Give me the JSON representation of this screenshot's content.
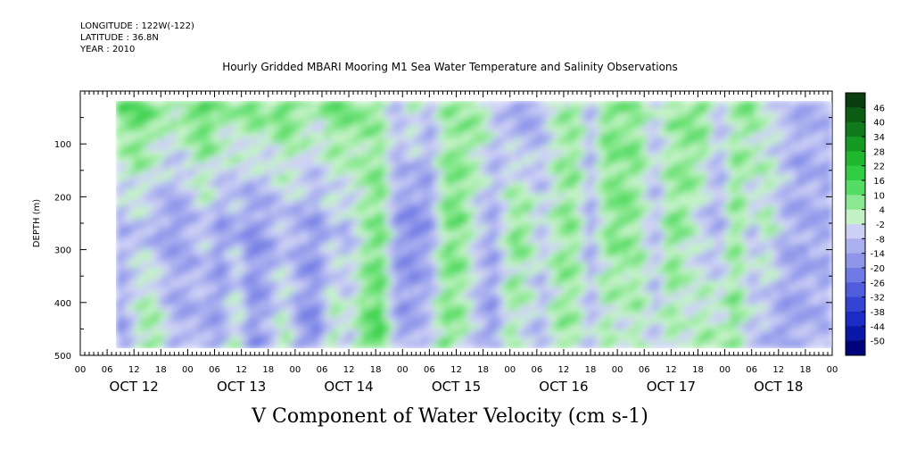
{
  "header": {
    "longitude": "LONGITUDE : 122W(-122)",
    "latitude": "LATITUDE : 36.8N",
    "year": "YEAR : 2010"
  },
  "chart_data": {
    "type": "heatmap",
    "title": "Hourly Gridded MBARI Mooring M1 Sea Water Temperature and Salinity Observations",
    "bottom_title": "V Component of Water Velocity (cm s-1)",
    "ylabel": "DEPTH (m)",
    "xlabel": "",
    "y_range": [
      0,
      500
    ],
    "y_inverted": true,
    "y_ticks": [
      "100",
      "200",
      "300",
      "400",
      "500"
    ],
    "y_data_extent": [
      20,
      490
    ],
    "x_hour_labels": [
      "00",
      "06",
      "12",
      "18",
      "00",
      "06",
      "12",
      "18",
      "00",
      "06",
      "12",
      "18",
      "00",
      "06",
      "12",
      "18",
      "00",
      "06",
      "12",
      "18",
      "00",
      "06",
      "12",
      "18",
      "00",
      "06",
      "12",
      "18",
      "00"
    ],
    "x_day_labels": [
      "OCT 12",
      "OCT 13",
      "OCT 14",
      "OCT 15",
      "OCT 16",
      "OCT 17",
      "OCT 18"
    ],
    "colorbar": {
      "labels": [
        "46",
        "40",
        "34",
        "28",
        "22",
        "16",
        "10",
        "4",
        "-2",
        "-8",
        "-14",
        "-20",
        "-26",
        "-32",
        "-38",
        "-44",
        "-50"
      ],
      "colors": [
        "#0a3d0f",
        "#0d5c14",
        "#117a1c",
        "#169a24",
        "#1eb72e",
        "#30cc42",
        "#55dc65",
        "#8ae890",
        "#c2f2c6",
        "#cdd0f5",
        "#aab0ef",
        "#8e96ea",
        "#6f7ae4",
        "#4f5cdc",
        "#3344d2",
        "#1a2cc4",
        "#0a18a8",
        "#00047a"
      ]
    },
    "column_pattern_note_free": true,
    "columns": [
      {
        "t": 0.0,
        "top": 8,
        "mid": -8,
        "bot": -6
      },
      {
        "t": 0.1,
        "top": 8,
        "mid": -12,
        "bot": -8
      },
      {
        "t": 0.25,
        "top": 8,
        "mid": -20,
        "bot": -16
      },
      {
        "t": 0.4,
        "top": 12,
        "mid": -10,
        "bot": -14
      },
      {
        "t": 0.55,
        "top": 16,
        "mid": -6,
        "bot": 4
      },
      {
        "t": 0.7,
        "top": 8,
        "mid": -12,
        "bot": 10
      },
      {
        "t": 0.85,
        "top": 4,
        "mid": -16,
        "bot": -8
      },
      {
        "t": 1.0,
        "top": 10,
        "mid": -14,
        "bot": -10
      },
      {
        "t": 1.15,
        "top": 16,
        "mid": -4,
        "bot": -12
      },
      {
        "t": 1.3,
        "top": 10,
        "mid": -16,
        "bot": -14
      },
      {
        "t": 1.45,
        "top": 4,
        "mid": -10,
        "bot": 6
      },
      {
        "t": 1.6,
        "top": 12,
        "mid": -18,
        "bot": -18
      },
      {
        "t": 1.75,
        "top": 6,
        "mid": -14,
        "bot": -10
      },
      {
        "t": 1.9,
        "top": 14,
        "mid": -8,
        "bot": 4
      },
      {
        "t": 2.05,
        "top": 8,
        "mid": -12,
        "bot": -16
      },
      {
        "t": 2.2,
        "top": 4,
        "mid": -16,
        "bot": -20
      },
      {
        "t": 2.35,
        "top": 10,
        "mid": -6,
        "bot": 6
      },
      {
        "t": 2.5,
        "top": 12,
        "mid": -10,
        "bot": -6
      },
      {
        "t": 2.65,
        "top": 6,
        "mid": 4,
        "bot": 12
      },
      {
        "t": 2.8,
        "top": 4,
        "mid": 10,
        "bot": 16
      },
      {
        "t": 2.95,
        "top": -8,
        "mid": -16,
        "bot": -14
      },
      {
        "t": 3.1,
        "top": 6,
        "mid": -20,
        "bot": -12
      },
      {
        "t": 3.25,
        "top": -10,
        "mid": -16,
        "bot": -6
      },
      {
        "t": 3.4,
        "top": 6,
        "mid": 8,
        "bot": 10
      },
      {
        "t": 3.55,
        "top": 4,
        "mid": 10,
        "bot": 4
      },
      {
        "t": 3.7,
        "top": 8,
        "mid": -6,
        "bot": -10
      },
      {
        "t": 3.85,
        "top": -4,
        "mid": -14,
        "bot": -16
      },
      {
        "t": 4.0,
        "top": -12,
        "mid": 6,
        "bot": 4
      },
      {
        "t": 4.15,
        "top": -18,
        "mid": 8,
        "bot": -6
      },
      {
        "t": 4.3,
        "top": -10,
        "mid": -6,
        "bot": -10
      },
      {
        "t": 4.45,
        "top": 4,
        "mid": 4,
        "bot": 6
      },
      {
        "t": 4.6,
        "top": 6,
        "mid": 8,
        "bot": 4
      },
      {
        "t": 4.75,
        "top": -8,
        "mid": -12,
        "bot": -8
      },
      {
        "t": 4.9,
        "top": 10,
        "mid": 6,
        "bot": 4
      },
      {
        "t": 5.05,
        "top": 6,
        "mid": 10,
        "bot": -6
      },
      {
        "t": 5.2,
        "top": 8,
        "mid": 4,
        "bot": 6
      },
      {
        "t": 5.35,
        "top": -6,
        "mid": -10,
        "bot": -8
      },
      {
        "t": 5.5,
        "top": 4,
        "mid": 8,
        "bot": 6
      },
      {
        "t": 5.65,
        "top": 8,
        "mid": 4,
        "bot": -4
      },
      {
        "t": 5.8,
        "top": 12,
        "mid": -6,
        "bot": 6
      },
      {
        "t": 5.95,
        "top": -8,
        "mid": -14,
        "bot": 4
      },
      {
        "t": 6.1,
        "top": 4,
        "mid": 10,
        "bot": 8
      },
      {
        "t": 6.25,
        "top": 10,
        "mid": -8,
        "bot": -6
      },
      {
        "t": 6.4,
        "top": -4,
        "mid": 4,
        "bot": -10
      },
      {
        "t": 6.55,
        "top": -6,
        "mid": -10,
        "bot": -16
      },
      {
        "t": 6.7,
        "top": -12,
        "mid": -14,
        "bot": -12
      },
      {
        "t": 6.79,
        "top": -10,
        "mid": -12,
        "bot": -10
      }
    ]
  }
}
